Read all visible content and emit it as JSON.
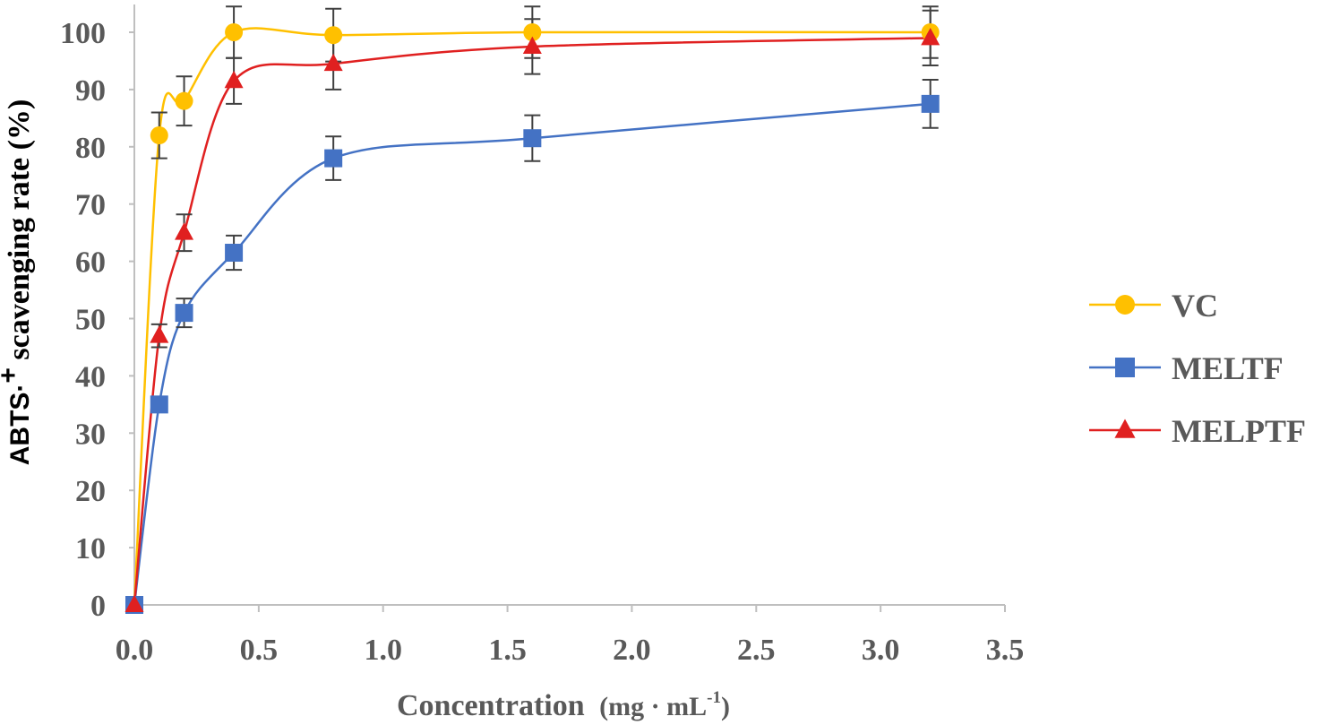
{
  "chart_data": {
    "type": "line",
    "title": "",
    "xlabel": "Concentration",
    "xlabel_unit": "(mg · mL",
    "xlabel_unit_sup": "-1",
    "xlabel_unit_close": ")",
    "ylabel_prefix": "ABTS·",
    "ylabel_sup": "+",
    "ylabel_rest": " scavenging rate (%)",
    "xlim": [
      0.0,
      3.5
    ],
    "ylim": [
      0,
      100
    ],
    "xticks": [
      "0.0",
      "0.5",
      "1.0",
      "1.5",
      "2.0",
      "2.5",
      "3.0",
      "3.5"
    ],
    "yticks": [
      "0",
      "10",
      "20",
      "30",
      "40",
      "50",
      "60",
      "70",
      "80",
      "90",
      "100"
    ],
    "x": [
      0.0,
      0.1,
      0.2,
      0.4,
      0.8,
      1.6,
      3.2
    ],
    "grid": false,
    "legend_position": "right",
    "series": [
      {
        "name": "VC",
        "color": "#FFC000",
        "marker": "circle",
        "values": [
          0,
          82,
          88,
          100,
          99.5,
          100,
          100
        ],
        "errors": [
          0,
          4,
          4.3,
          4.5,
          4.6,
          4.5,
          4.5
        ]
      },
      {
        "name": "MELTF",
        "color": "#4472C4",
        "marker": "square",
        "values": [
          0,
          35,
          51,
          61.5,
          78,
          81.5,
          87.5
        ],
        "errors": [
          0,
          0,
          2.5,
          3,
          3.8,
          4,
          4.2
        ]
      },
      {
        "name": "MELPTF",
        "color": "#E02020",
        "marker": "triangle",
        "values": [
          0,
          47,
          65,
          91.5,
          94.5,
          97.5,
          99
        ],
        "errors": [
          0,
          2,
          3.2,
          4,
          4.5,
          4.8,
          4.8
        ]
      }
    ]
  }
}
